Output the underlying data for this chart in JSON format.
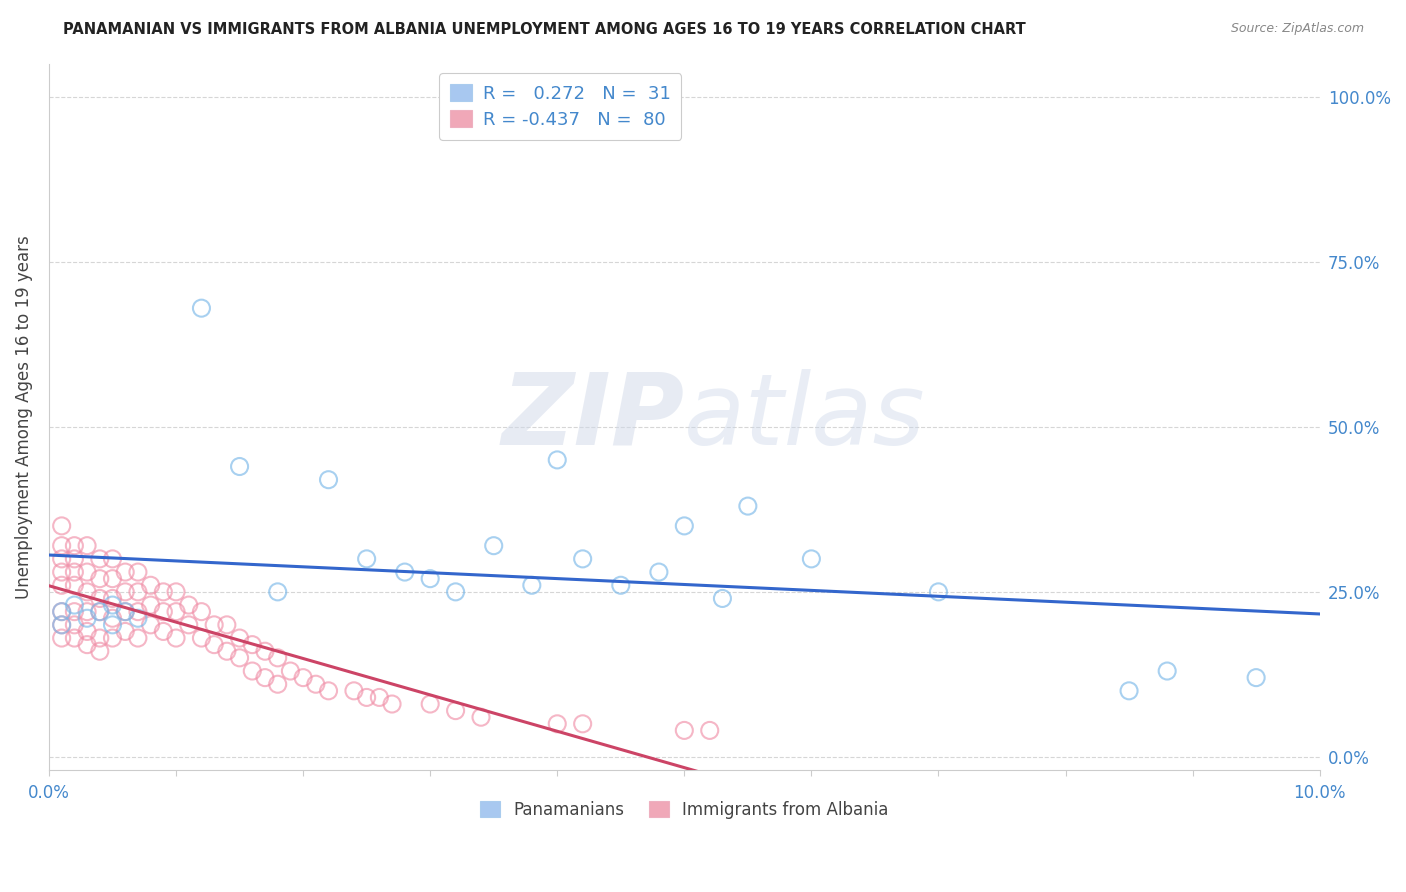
{
  "title": "PANAMANIAN VS IMMIGRANTS FROM ALBANIA UNEMPLOYMENT AMONG AGES 16 TO 19 YEARS CORRELATION CHART",
  "source": "Source: ZipAtlas.com",
  "ylabel": "Unemployment Among Ages 16 to 19 years",
  "legend_box_entries": [
    {
      "R": 0.272,
      "N": 31,
      "color": "#a8c8f0"
    },
    {
      "R": -0.437,
      "N": 80,
      "color": "#f0a8b8"
    }
  ],
  "legend_bottom": [
    "Panamanians",
    "Immigrants from Albania"
  ],
  "ytick_labels": [
    "0.0%",
    "25.0%",
    "50.0%",
    "75.0%",
    "100.0%"
  ],
  "ytick_values": [
    0.0,
    0.25,
    0.5,
    0.75,
    1.0
  ],
  "xlim": [
    0,
    0.1
  ],
  "ylim": [
    -0.02,
    1.05
  ],
  "watermark": "ZIPatlas",
  "background_color": "#ffffff",
  "scatter_blue_color": "#7ab8e8",
  "scatter_pink_color": "#f090a8",
  "line_blue_color": "#3366cc",
  "line_pink_color": "#cc4466",
  "grid_color": "#cccccc",
  "title_color": "#222222",
  "source_color": "#888888",
  "tick_color": "#4488cc",
  "blue_x": [
    0.001,
    0.001,
    0.002,
    0.003,
    0.004,
    0.005,
    0.005,
    0.006,
    0.007,
    0.012,
    0.015,
    0.018,
    0.022,
    0.025,
    0.028,
    0.03,
    0.032,
    0.035,
    0.038,
    0.04,
    0.042,
    0.045,
    0.048,
    0.05,
    0.053,
    0.055,
    0.06,
    0.07,
    0.085,
    0.088,
    0.095
  ],
  "blue_y": [
    0.2,
    0.22,
    0.23,
    0.21,
    0.22,
    0.2,
    0.23,
    0.22,
    0.21,
    0.68,
    0.44,
    0.25,
    0.42,
    0.3,
    0.28,
    0.27,
    0.25,
    0.32,
    0.26,
    0.45,
    0.3,
    0.26,
    0.28,
    0.35,
    0.24,
    0.38,
    0.3,
    0.25,
    0.1,
    0.13,
    0.12
  ],
  "pink_x": [
    0.001,
    0.001,
    0.001,
    0.001,
    0.001,
    0.001,
    0.001,
    0.001,
    0.002,
    0.002,
    0.002,
    0.002,
    0.002,
    0.002,
    0.002,
    0.003,
    0.003,
    0.003,
    0.003,
    0.003,
    0.003,
    0.004,
    0.004,
    0.004,
    0.004,
    0.004,
    0.004,
    0.005,
    0.005,
    0.005,
    0.005,
    0.005,
    0.006,
    0.006,
    0.006,
    0.006,
    0.007,
    0.007,
    0.007,
    0.007,
    0.008,
    0.008,
    0.008,
    0.009,
    0.009,
    0.009,
    0.01,
    0.01,
    0.01,
    0.011,
    0.011,
    0.012,
    0.012,
    0.013,
    0.013,
    0.014,
    0.014,
    0.015,
    0.015,
    0.016,
    0.016,
    0.017,
    0.017,
    0.018,
    0.018,
    0.019,
    0.02,
    0.021,
    0.022,
    0.024,
    0.025,
    0.026,
    0.027,
    0.03,
    0.032,
    0.034,
    0.04,
    0.042,
    0.05,
    0.052
  ],
  "pink_y": [
    0.32,
    0.3,
    0.28,
    0.26,
    0.22,
    0.2,
    0.18,
    0.35,
    0.32,
    0.3,
    0.28,
    0.26,
    0.22,
    0.2,
    0.18,
    0.32,
    0.28,
    0.25,
    0.22,
    0.19,
    0.17,
    0.3,
    0.27,
    0.24,
    0.22,
    0.18,
    0.16,
    0.3,
    0.27,
    0.24,
    0.21,
    0.18,
    0.28,
    0.25,
    0.22,
    0.19,
    0.28,
    0.25,
    0.22,
    0.18,
    0.26,
    0.23,
    0.2,
    0.25,
    0.22,
    0.19,
    0.25,
    0.22,
    0.18,
    0.23,
    0.2,
    0.22,
    0.18,
    0.2,
    0.17,
    0.2,
    0.16,
    0.18,
    0.15,
    0.17,
    0.13,
    0.16,
    0.12,
    0.15,
    0.11,
    0.13,
    0.12,
    0.11,
    0.1,
    0.1,
    0.09,
    0.09,
    0.08,
    0.08,
    0.07,
    0.06,
    0.05,
    0.05,
    0.04,
    0.04
  ]
}
